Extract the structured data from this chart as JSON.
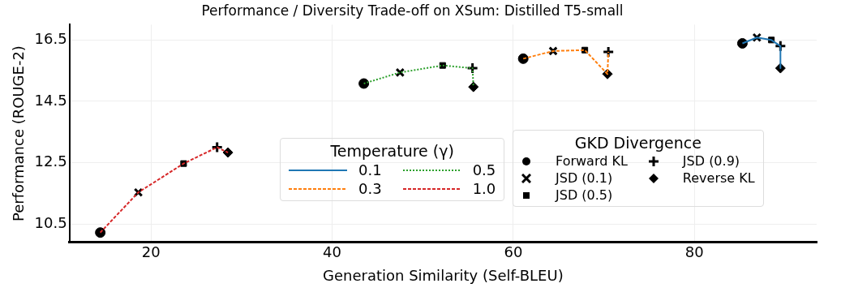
{
  "chart_data": {
    "type": "line",
    "title": "Performance / Diversity Trade-off on XSum: Distilled T5-small",
    "xlabel": "Generation Similarity (Self-BLEU)",
    "ylabel": "Performance (ROUGE-2)",
    "legend_title": [
      "Temperature (γ)",
      "GKD Divergence"
    ],
    "xlim": [
      11,
      93.5
    ],
    "xticks": [
      20,
      40,
      60,
      80
    ],
    "ylim": [
      9.9,
      17
    ],
    "yticks": [
      10.5,
      12.5,
      14.5,
      16.5
    ],
    "grid": true,
    "legend": "bottom right",
    "series": [
      {
        "name": "0.1",
        "color": "#1f77b4",
        "line_style": "solid",
        "x": [
          85.3,
          86.9,
          88.5,
          89.5,
          89.5
        ],
        "values": [
          16.39,
          16.58,
          16.5,
          16.3,
          15.58
        ]
      },
      {
        "name": "0.3",
        "color": "#ff7f0e",
        "line_style": "dashed",
        "x": [
          61.1,
          64.4,
          67.9,
          70.4,
          70.5
        ],
        "values": [
          15.89,
          16.14,
          16.17,
          15.39,
          16.11
        ]
      },
      {
        "name": "0.5",
        "color": "#2ca02c",
        "line_style": "dotted",
        "x": [
          43.5,
          47.5,
          52.2,
          55.5,
          55.6
        ],
        "values": [
          15.08,
          15.44,
          15.67,
          15.58,
          14.97
        ]
      },
      {
        "name": "1.0",
        "color": "#d62728",
        "line_style": "dashed",
        "x": [
          14.4,
          18.6,
          23.6,
          27.3,
          28.5
        ],
        "values": [
          10.22,
          11.53,
          12.47,
          13.0,
          12.83
        ]
      },
      {
        "name": "Forward KL",
        "type": "scatter",
        "marker": "circle",
        "color": "#000000",
        "x": [
          85.3,
          61.1,
          43.5,
          14.4
        ],
        "values": [
          16.39,
          15.89,
          15.08,
          10.22
        ]
      },
      {
        "name": "JSD (0.1)",
        "type": "scatter",
        "marker": "x",
        "color": "#000000",
        "x": [
          86.9,
          64.4,
          47.5,
          18.6
        ],
        "values": [
          16.58,
          16.14,
          15.44,
          11.53
        ]
      },
      {
        "name": "JSD (0.5)",
        "type": "scatter",
        "marker": "square",
        "color": "#000000",
        "x": [
          88.5,
          67.9,
          52.2,
          23.6
        ],
        "values": [
          16.5,
          16.17,
          15.67,
          12.47
        ]
      },
      {
        "name": "JSD (0.9)",
        "type": "scatter",
        "marker": "cross",
        "color": "#000000",
        "x": [
          89.5,
          70.5,
          55.5,
          27.3
        ],
        "values": [
          16.3,
          16.11,
          15.58,
          13.0
        ]
      },
      {
        "name": "Reverse KL",
        "type": "scatter",
        "marker": "diamond",
        "color": "#000000",
        "x": [
          89.5,
          70.4,
          55.6,
          28.5
        ],
        "values": [
          15.58,
          15.39,
          14.97,
          12.83
        ]
      }
    ]
  }
}
